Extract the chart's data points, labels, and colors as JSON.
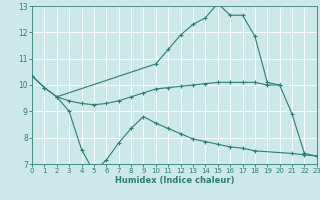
{
  "xlabel": "Humidex (Indice chaleur)",
  "bg_color": "#cce8e8",
  "grid_color": "#ffffff",
  "line_color": "#2e7d72",
  "ylim": [
    7,
    13
  ],
  "xlim": [
    0,
    23
  ],
  "yticks": [
    7,
    8,
    9,
    10,
    11,
    12,
    13
  ],
  "xticks": [
    0,
    1,
    2,
    3,
    4,
    5,
    6,
    7,
    8,
    9,
    10,
    11,
    12,
    13,
    14,
    15,
    16,
    17,
    18,
    19,
    20,
    21,
    22,
    23
  ],
  "line_peak_x": [
    0,
    1,
    2,
    10,
    11,
    12,
    13,
    14,
    15,
    16,
    17,
    18,
    19,
    20,
    21,
    22,
    23
  ],
  "line_peak_y": [
    10.35,
    9.9,
    9.55,
    10.8,
    11.35,
    11.9,
    12.3,
    12.55,
    13.1,
    12.65,
    12.65,
    11.85,
    10.1,
    10.0,
    8.9,
    7.4,
    7.3
  ],
  "line_upper_x": [
    0,
    1,
    2,
    3,
    4,
    5,
    6,
    7,
    8,
    9,
    10,
    11,
    12,
    13,
    14,
    15,
    16,
    17,
    18,
    19,
    20
  ],
  "line_upper_y": [
    10.35,
    9.9,
    9.55,
    9.4,
    9.3,
    9.25,
    9.3,
    9.4,
    9.55,
    9.7,
    9.85,
    9.9,
    9.95,
    10.0,
    10.05,
    10.1,
    10.1,
    10.1,
    10.1,
    10.0,
    10.0
  ],
  "line_bottom_x": [
    2,
    3,
    4,
    5,
    6,
    7,
    8,
    9,
    10,
    11,
    12,
    13,
    14,
    15,
    16,
    17,
    18,
    21,
    22,
    23
  ],
  "line_bottom_y": [
    9.55,
    9.0,
    7.55,
    6.7,
    7.15,
    7.8,
    8.35,
    8.8,
    8.55,
    8.35,
    8.15,
    7.95,
    7.85,
    7.75,
    7.65,
    7.6,
    7.5,
    7.4,
    7.35,
    7.3
  ]
}
